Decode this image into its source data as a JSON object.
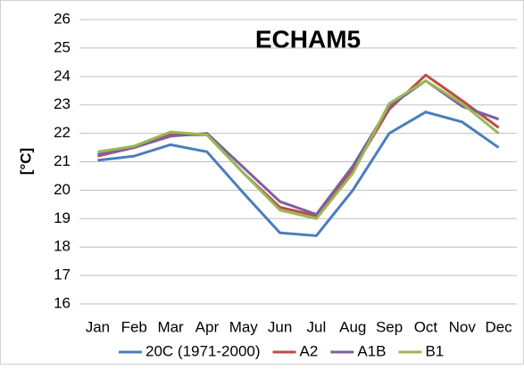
{
  "chart_data": {
    "type": "line",
    "title": "ECHAM5",
    "y_label": "[°C]",
    "categories": [
      "Jan",
      "Feb",
      "Mar",
      "Apr",
      "May",
      "Jun",
      "Jul",
      "Aug",
      "Sep",
      "Oct",
      "Nov",
      "Dec"
    ],
    "series": [
      {
        "name": "20C (1971-2000)",
        "color": "#4a7ebb",
        "values": [
          21.05,
          21.2,
          21.6,
          21.35,
          19.9,
          18.5,
          18.4,
          20.0,
          22.0,
          22.75,
          22.4,
          21.5
        ]
      },
      {
        "name": "A2",
        "color": "#be4b48",
        "values": [
          21.2,
          21.5,
          21.95,
          21.95,
          20.6,
          19.4,
          19.1,
          20.7,
          22.85,
          24.05,
          23.15,
          22.2
        ]
      },
      {
        "name": "A1B",
        "color": "#7d60a0",
        "values": [
          21.25,
          21.5,
          21.9,
          22.0,
          20.8,
          19.6,
          19.15,
          20.85,
          22.95,
          23.85,
          22.95,
          22.5
        ]
      },
      {
        "name": "B1",
        "color": "#98b954",
        "values": [
          21.35,
          21.55,
          22.05,
          21.95,
          20.6,
          19.3,
          19.0,
          20.6,
          23.05,
          23.85,
          23.05,
          22.0
        ]
      }
    ],
    "ylim": [
      16,
      26
    ],
    "yticks": [
      16,
      17,
      18,
      19,
      20,
      21,
      22,
      23,
      24,
      25,
      26
    ],
    "grid": true,
    "legend": "bottom"
  }
}
